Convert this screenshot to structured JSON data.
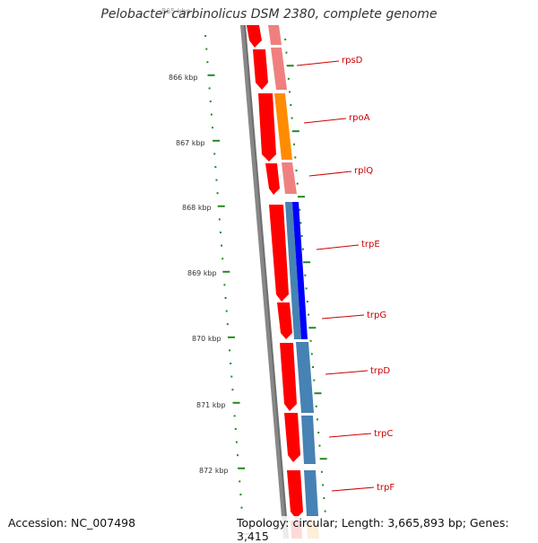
{
  "title": "Pelobacter carbinolicus DSM 2380, complete genome",
  "accession_text": "Accession: NC_007498",
  "topology_text": "Topology: circular; Length: 3,665,893 bp; Genes: 3,415",
  "faded_top_label": "865 kbp",
  "ticks": [
    {
      "label": "866 kbp"
    },
    {
      "label": "867 kbp"
    },
    {
      "label": "868 kbp"
    },
    {
      "label": "869 kbp"
    },
    {
      "label": "870 kbp"
    },
    {
      "label": "871 kbp"
    },
    {
      "label": "872 kbp"
    }
  ],
  "genes": [
    {
      "name": "rpsD"
    },
    {
      "name": "rpoA"
    },
    {
      "name": "rplQ"
    },
    {
      "name": "trpE"
    },
    {
      "name": "trpG"
    },
    {
      "name": "trpD"
    },
    {
      "name": "trpC"
    },
    {
      "name": "trpF"
    }
  ],
  "colors": {
    "forward_feature": "#ff0000",
    "label_red": "#cc0000",
    "pink_track": "#f08080",
    "orange_track": "#ff8c00",
    "blue_track": "#4682b4",
    "dark_blue_track": "#0000ff",
    "backbone": "#888888",
    "tick_green": "#228b22"
  }
}
